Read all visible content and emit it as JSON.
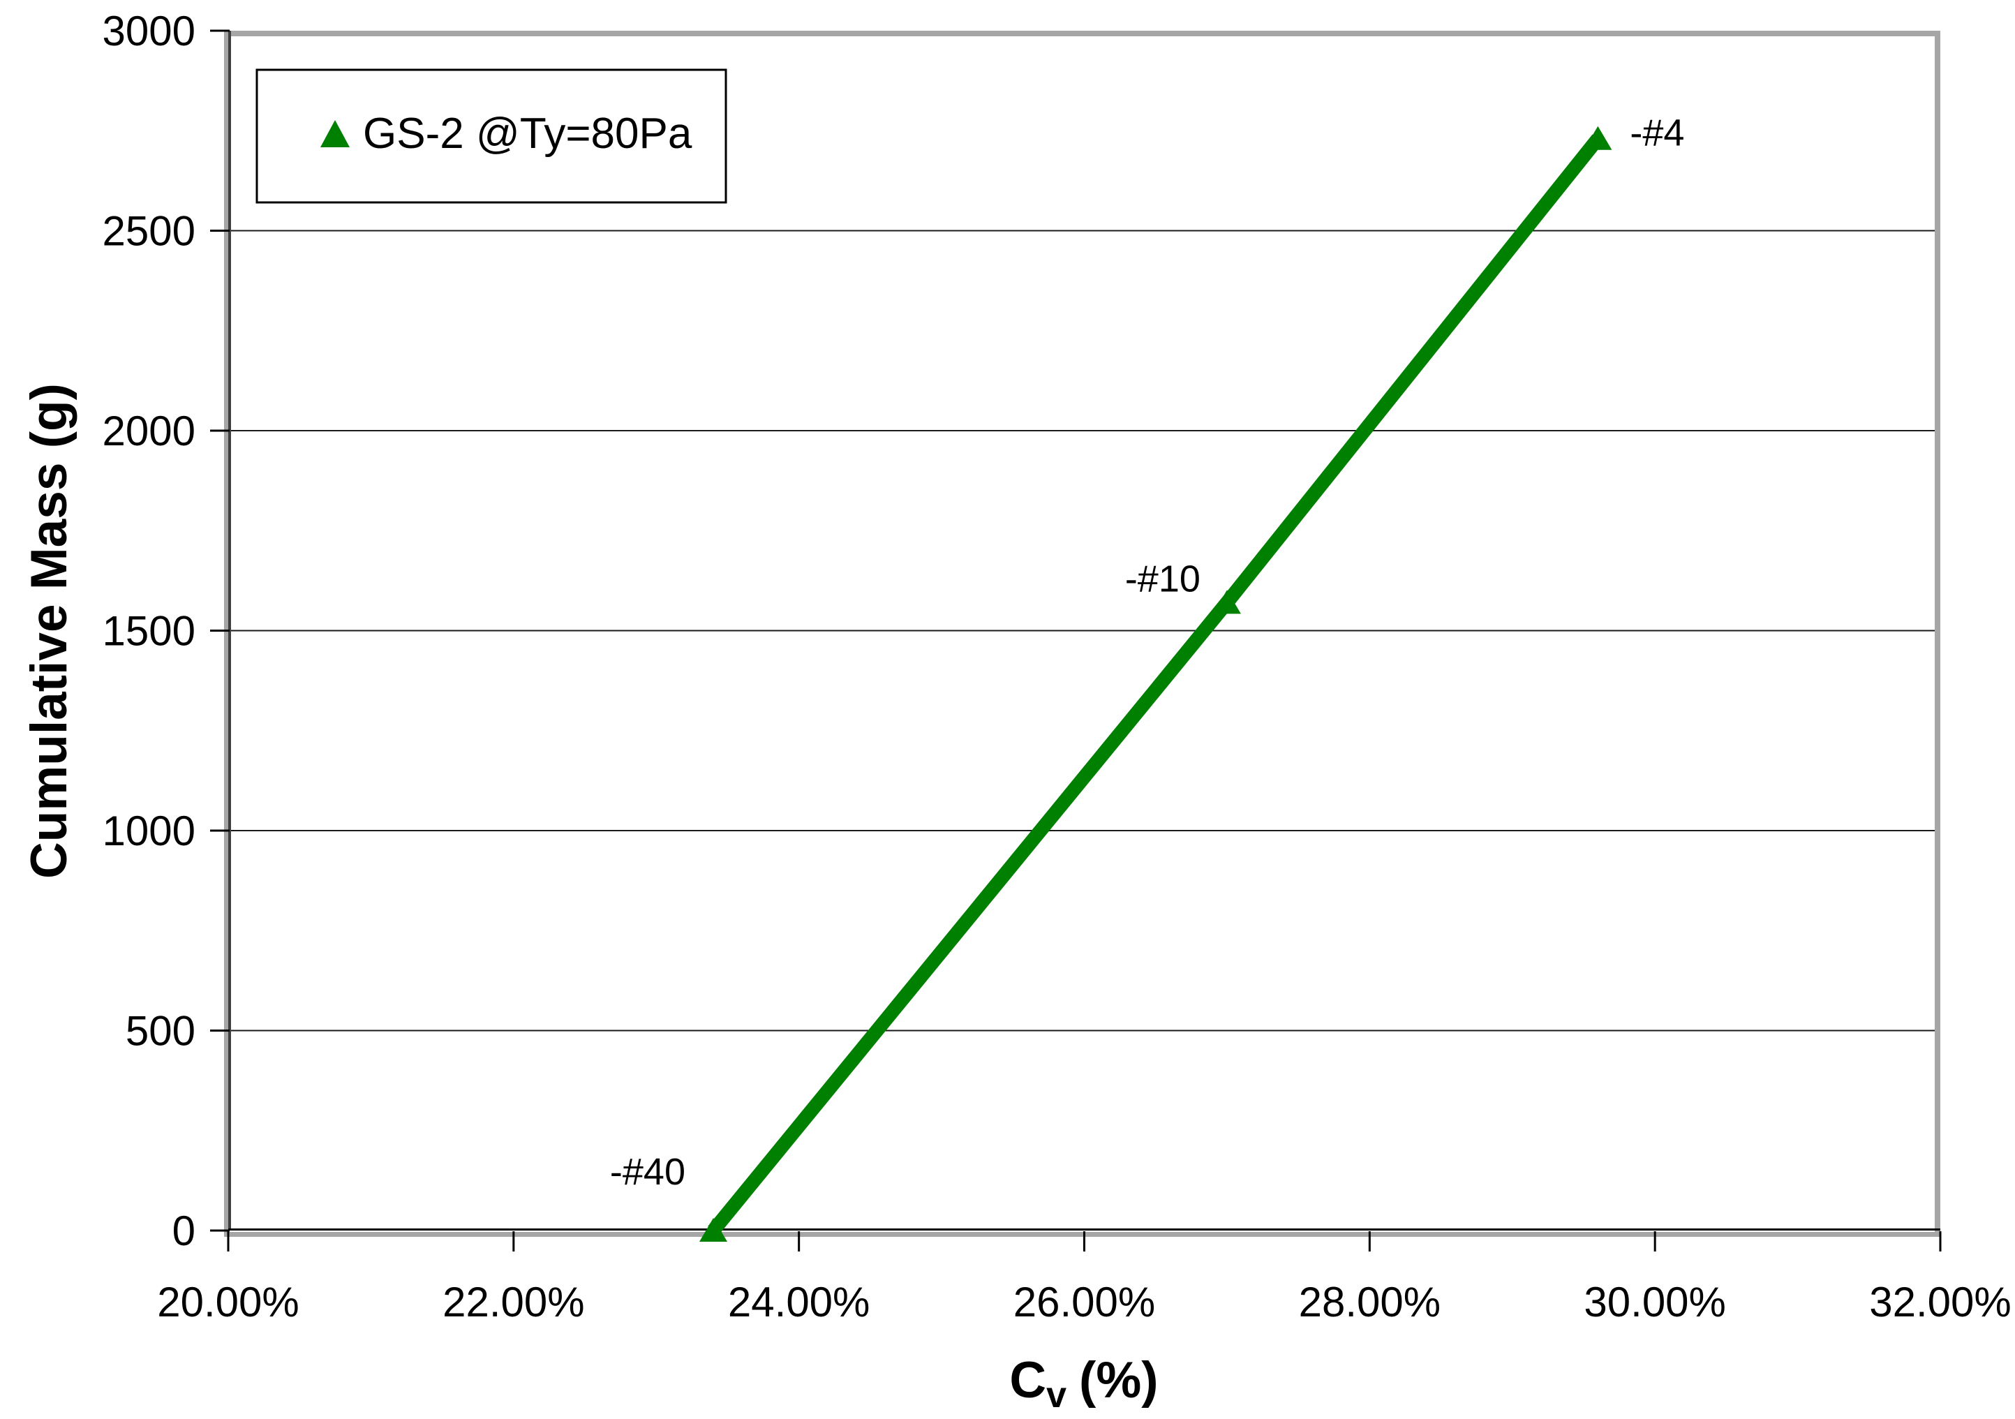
{
  "chart_data": {
    "type": "line",
    "title": "",
    "grid": "horizontal",
    "legend_position": "top-left",
    "x_axis": {
      "label": "Cv (%)",
      "label_base": "C",
      "label_subscript": "v",
      "label_units": "(%)",
      "min": 20,
      "max": 32,
      "tick_values": [
        20,
        22,
        24,
        26,
        28,
        30,
        32
      ],
      "tick_labels": [
        "20.00%",
        "22.00%",
        "24.00%",
        "26.00%",
        "28.00%",
        "30.00%",
        "32.00%"
      ]
    },
    "y_axis": {
      "label": "Cumulative Mass (g)",
      "min": 0,
      "max": 3000,
      "tick_values": [
        0,
        500,
        1000,
        1500,
        2000,
        2500,
        3000
      ],
      "tick_labels": [
        "0",
        "500",
        "1000",
        "1500",
        "2000",
        "2500",
        "3000"
      ]
    },
    "series": [
      {
        "name": "GS-2 @Ty=80Pa",
        "color": "#008000",
        "marker": "triangle",
        "points": [
          {
            "x": 23.4,
            "y": 0,
            "label": "-#40",
            "label_pos": "above-left"
          },
          {
            "x": 27.0,
            "y": 1570,
            "label": "-#10",
            "label_pos": "left"
          },
          {
            "x": 29.6,
            "y": 2730,
            "label": "-#4",
            "label_pos": "right"
          }
        ]
      }
    ],
    "colors": {
      "series_green": "#008000",
      "plot_border_gray": "#a6a6a6",
      "gridline": "#1a1a1a",
      "text": "#000000"
    }
  }
}
